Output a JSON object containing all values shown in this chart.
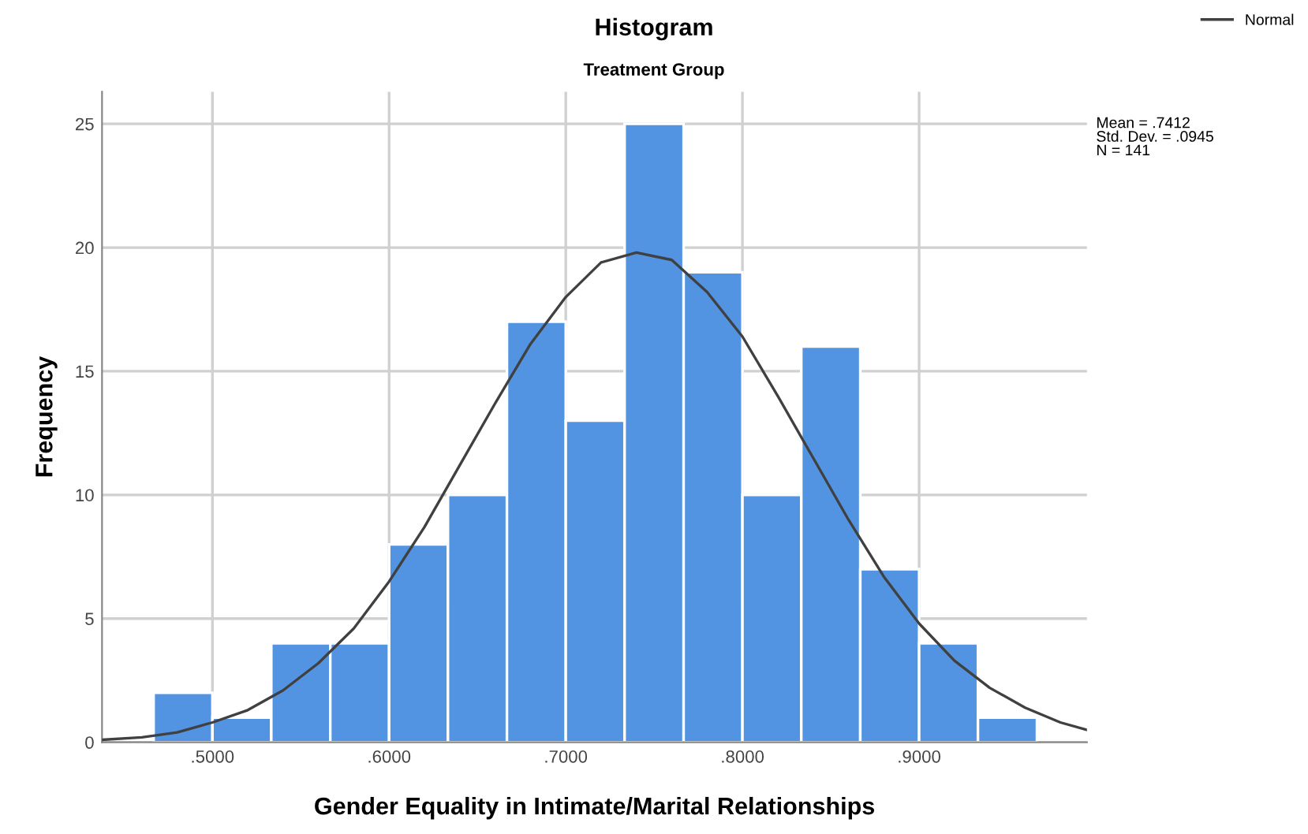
{
  "chart_data": {
    "type": "histogram",
    "title": "Histogram",
    "subtitle": "Treatment Group",
    "xlabel": "Gender Equality in Intimate/Marital Relationships",
    "ylabel": "Frequency",
    "bins": [
      0.4667,
      0.5,
      0.5333,
      0.5667,
      0.6,
      0.6333,
      0.6667,
      0.7,
      0.7333,
      0.7667,
      0.8,
      0.8333,
      0.8667,
      0.9,
      0.9333,
      0.9667
    ],
    "values": [
      2,
      1,
      4,
      4,
      8,
      10,
      17,
      13,
      25,
      19,
      10,
      16,
      7,
      4,
      1
    ],
    "color": "#5294e2",
    "series": [
      {
        "type": "line",
        "name": "Normal",
        "color": "#404040",
        "x": [
          0.4375,
          0.46,
          0.48,
          0.5,
          0.52,
          0.54,
          0.56,
          0.58,
          0.6,
          0.62,
          0.64,
          0.66,
          0.68,
          0.7,
          0.72,
          0.74,
          0.76,
          0.78,
          0.8,
          0.82,
          0.84,
          0.86,
          0.88,
          0.9,
          0.92,
          0.94,
          0.96,
          0.98,
          0.995
        ],
        "values": [
          0.1,
          0.2,
          0.4,
          0.8,
          1.3,
          2.1,
          3.2,
          4.6,
          6.5,
          8.7,
          11.2,
          13.7,
          16.1,
          18.0,
          19.4,
          19.8,
          19.5,
          18.2,
          16.4,
          14.0,
          11.5,
          9.0,
          6.7,
          4.8,
          3.3,
          2.2,
          1.4,
          0.8,
          0.5
        ]
      }
    ],
    "xlim": [
      0.4375,
      0.995
    ],
    "ylim": [
      0,
      26.3
    ],
    "xticks": [
      {
        "value": 0.5,
        "label": ".5000"
      },
      {
        "value": 0.6,
        "label": ".6000"
      },
      {
        "value": 0.7,
        "label": ".7000"
      },
      {
        "value": 0.8,
        "label": ".8000"
      },
      {
        "value": 0.9,
        "label": ".9000"
      }
    ],
    "yticks": [
      0,
      5,
      10,
      15,
      20,
      25
    ],
    "grid": true,
    "legend": "top right",
    "marker": "none",
    "line_style": "solid",
    "annotations": [
      "Mean = .7412\nStd. Dev. = .0945\nN = 141"
    ]
  }
}
